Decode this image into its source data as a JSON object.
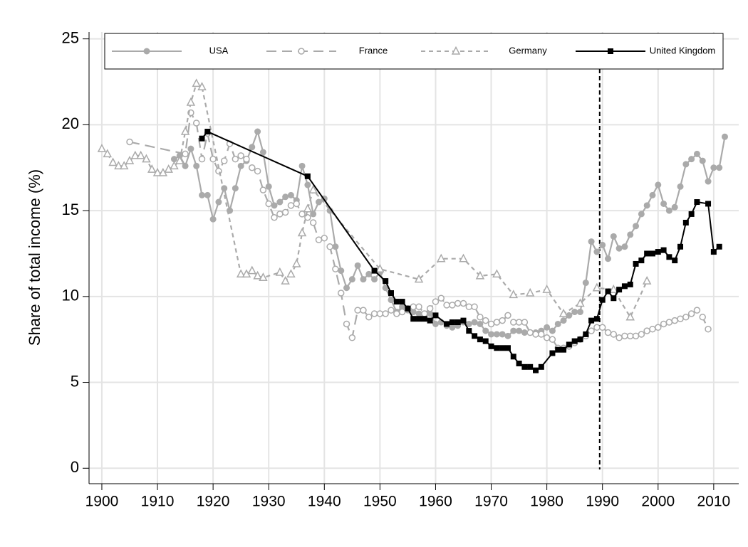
{
  "chart_data": {
    "type": "line",
    "ylabel": "Share of total income (%)",
    "xlim": [
      1897.7,
      2014.5
    ],
    "ylim": [
      -0.9,
      25.4
    ],
    "xticks": [
      1900,
      1910,
      1920,
      1930,
      1940,
      1950,
      1960,
      1970,
      1980,
      1990,
      2000,
      2010
    ],
    "yticks": [
      0,
      5,
      10,
      15,
      20,
      25
    ],
    "grid": true,
    "legend": "top",
    "vline": 1989.5,
    "series": [
      {
        "name": "USA",
        "color": "#aaaaaa",
        "marker": "circle",
        "dash": "solid",
        "x": [
          1913,
          1914,
          1915,
          1916,
          1917,
          1918,
          1919,
          1920,
          1921,
          1922,
          1923,
          1924,
          1925,
          1926,
          1927,
          1928,
          1929,
          1930,
          1931,
          1932,
          1933,
          1934,
          1935,
          1936,
          1937,
          1938,
          1939,
          1940,
          1941,
          1942,
          1943,
          1944,
          1945,
          1946,
          1947,
          1948,
          1949,
          1950,
          1951,
          1952,
          1953,
          1954,
          1955,
          1956,
          1957,
          1958,
          1959,
          1960,
          1961,
          1962,
          1963,
          1964,
          1965,
          1966,
          1967,
          1968,
          1969,
          1970,
          1971,
          1972,
          1973,
          1974,
          1975,
          1976,
          1977,
          1978,
          1979,
          1980,
          1981,
          1982,
          1983,
          1984,
          1985,
          1986,
          1987,
          1988,
          1989,
          1990,
          1991,
          1992,
          1993,
          1994,
          1995,
          1996,
          1997,
          1998,
          1999,
          2000,
          2001,
          2002,
          2003,
          2004,
          2005,
          2006,
          2007,
          2008,
          2009,
          2010,
          2011,
          2012
        ],
        "values": [
          18.0,
          18.2,
          17.6,
          18.6,
          17.6,
          15.9,
          15.9,
          14.5,
          15.5,
          16.3,
          15.0,
          16.3,
          17.6,
          17.9,
          18.7,
          19.6,
          18.4,
          16.4,
          15.3,
          15.5,
          15.8,
          15.9,
          15.6,
          17.6,
          16.5,
          14.8,
          15.5,
          15.7,
          15.0,
          12.9,
          11.5,
          10.5,
          11.0,
          11.8,
          11.0,
          11.3,
          11.0,
          11.4,
          10.5,
          9.8,
          9.1,
          9.4,
          9.2,
          9.1,
          9.0,
          8.8,
          9.0,
          8.4,
          8.5,
          8.3,
          8.2,
          8.3,
          8.5,
          8.4,
          8.5,
          8.4,
          8.0,
          7.8,
          7.8,
          7.8,
          7.7,
          8.0,
          8.0,
          7.9,
          7.9,
          7.9,
          8.0,
          8.2,
          8.0,
          8.4,
          8.6,
          8.9,
          9.1,
          9.1,
          10.8,
          13.2,
          12.6,
          13.0,
          12.2,
          13.5,
          12.8,
          12.9,
          13.6,
          14.1,
          14.8,
          15.3,
          15.9,
          16.5,
          15.4,
          15.0,
          15.2,
          16.4,
          17.7,
          18.0,
          18.3,
          17.9,
          16.7,
          17.5,
          17.5,
          19.3
        ]
      },
      {
        "name": "France",
        "color": "#aaaaaa",
        "marker": "hollow-circle",
        "dash": "long",
        "x": [
          1905,
          1915,
          1916,
          1917,
          1918,
          1919,
          1920,
          1921,
          1922,
          1923,
          1924,
          1925,
          1926,
          1927,
          1928,
          1929,
          1930,
          1931,
          1932,
          1933,
          1934,
          1935,
          1936,
          1937,
          1938,
          1939,
          1940,
          1941,
          1942,
          1943,
          1944,
          1945,
          1946,
          1947,
          1948,
          1949,
          1950,
          1951,
          1952,
          1953,
          1954,
          1955,
          1956,
          1957,
          1958,
          1959,
          1960,
          1961,
          1962,
          1963,
          1964,
          1965,
          1966,
          1967,
          1968,
          1969,
          1970,
          1971,
          1972,
          1973,
          1974,
          1975,
          1976,
          1977,
          1978,
          1979,
          1980,
          1981,
          1982,
          1983,
          1984,
          1985,
          1986,
          1987,
          1988,
          1989,
          1990,
          1991,
          1992,
          1993,
          1994,
          1995,
          1996,
          1997,
          1998,
          1999,
          2000,
          2001,
          2002,
          2003,
          2004,
          2005,
          2006,
          2007,
          2008,
          2009
        ],
        "values": [
          19.0,
          18.3,
          20.7,
          20.1,
          18.0,
          19.5,
          18.0,
          17.3,
          17.9,
          18.9,
          18.0,
          18.2,
          18.0,
          17.5,
          17.3,
          16.2,
          15.4,
          14.6,
          14.8,
          14.9,
          15.3,
          15.4,
          14.8,
          14.6,
          14.3,
          13.3,
          13.4,
          12.9,
          11.6,
          10.2,
          8.4,
          7.6,
          9.2,
          9.2,
          8.8,
          9.0,
          9.0,
          9.0,
          9.2,
          9.0,
          9.1,
          9.3,
          9.4,
          9.4,
          9.0,
          9.3,
          9.7,
          9.9,
          9.5,
          9.5,
          9.6,
          9.6,
          9.4,
          9.4,
          8.8,
          8.6,
          8.4,
          8.5,
          8.6,
          8.9,
          8.5,
          8.5,
          8.5,
          7.9,
          7.8,
          7.8,
          7.6,
          7.5,
          7.0,
          7.0,
          7.1,
          7.3,
          7.5,
          7.7,
          8.0,
          8.2,
          8.2,
          7.9,
          7.8,
          7.6,
          7.7,
          7.7,
          7.7,
          7.8,
          8.0,
          8.1,
          8.2,
          8.4,
          8.5,
          8.6,
          8.7,
          8.8,
          9.0,
          9.2,
          8.8,
          8.1
        ]
      },
      {
        "name": "Germany",
        "color": "#aaaaaa",
        "marker": "hollow-triangle",
        "dash": "short",
        "x": [
          1900,
          1901,
          1902,
          1903,
          1904,
          1905,
          1906,
          1907,
          1908,
          1909,
          1910,
          1911,
          1912,
          1913,
          1914,
          1915,
          1916,
          1917,
          1918,
          1925,
          1926,
          1927,
          1928,
          1929,
          1932,
          1933,
          1934,
          1935,
          1936,
          1937,
          1938,
          1950,
          1957,
          1961,
          1965,
          1968,
          1971,
          1974,
          1977,
          1980,
          1983,
          1986,
          1989,
          1992,
          1995,
          1998
        ],
        "values": [
          18.6,
          18.3,
          17.8,
          17.6,
          17.6,
          17.9,
          18.2,
          18.2,
          18.0,
          17.4,
          17.2,
          17.2,
          17.4,
          17.6,
          17.9,
          19.6,
          21.3,
          22.4,
          22.2,
          11.3,
          11.3,
          11.5,
          11.2,
          11.1,
          11.4,
          10.9,
          11.3,
          11.9,
          13.7,
          15.1,
          16.2,
          11.6,
          11.0,
          12.2,
          12.2,
          11.2,
          11.3,
          10.1,
          10.2,
          10.4,
          9.0,
          9.6,
          10.5,
          10.4,
          8.8,
          10.9
        ]
      },
      {
        "name": "United Kingdom",
        "color": "#000000",
        "marker": "square",
        "dash": "solid",
        "x": [
          1918,
          1919,
          1937,
          1949,
          1951,
          1952,
          1953,
          1954,
          1955,
          1956,
          1957,
          1958,
          1959,
          1960,
          1962,
          1963,
          1964,
          1965,
          1966,
          1967,
          1968,
          1969,
          1970,
          1971,
          1972,
          1973,
          1974,
          1975,
          1976,
          1977,
          1978,
          1979,
          1981,
          1982,
          1983,
          1984,
          1985,
          1986,
          1987,
          1988,
          1989,
          1990,
          1991,
          1992,
          1993,
          1994,
          1995,
          1996,
          1997,
          1998,
          1999,
          2000,
          2001,
          2002,
          2003,
          2004,
          2005,
          2006,
          2007,
          2009,
          2010,
          2011
        ],
        "values": [
          19.2,
          19.6,
          17.0,
          11.5,
          10.9,
          10.2,
          9.7,
          9.7,
          9.3,
          8.7,
          8.7,
          8.7,
          8.6,
          8.9,
          8.4,
          8.5,
          8.5,
          8.6,
          8.0,
          7.7,
          7.5,
          7.4,
          7.1,
          7.0,
          7.0,
          7.0,
          6.5,
          6.1,
          5.9,
          5.9,
          5.7,
          5.9,
          6.7,
          6.9,
          6.9,
          7.2,
          7.4,
          7.5,
          7.8,
          8.6,
          8.7,
          9.8,
          10.3,
          9.9,
          10.4,
          10.6,
          10.7,
          11.9,
          12.1,
          12.5,
          12.5,
          12.6,
          12.7,
          12.3,
          12.1,
          12.9,
          14.3,
          14.8,
          15.5,
          15.4,
          12.6,
          12.9
        ]
      }
    ]
  }
}
